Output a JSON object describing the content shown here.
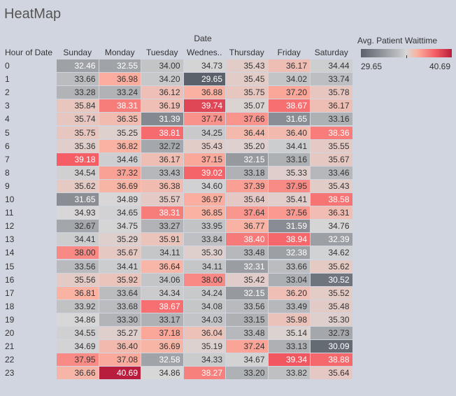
{
  "title": "HeatMap",
  "colors": {
    "background": "#d1d5e0"
  },
  "chart_data": {
    "type": "heatmap",
    "column_field": "Date",
    "row_field": "Hour of Date",
    "columns": [
      "Sunday",
      "Monday",
      "Tuesday",
      "Wednes..",
      "Thursday",
      "Friday",
      "Saturday"
    ],
    "rows": [
      "0",
      "1",
      "2",
      "3",
      "4",
      "5",
      "6",
      "7",
      "8",
      "9",
      "10",
      "11",
      "12",
      "13",
      "14",
      "15",
      "16",
      "17",
      "18",
      "19",
      "20",
      "21",
      "22",
      "23"
    ],
    "values": [
      [
        32.46,
        32.55,
        34.0,
        34.73,
        35.43,
        36.17,
        34.44
      ],
      [
        33.66,
        36.98,
        34.2,
        29.65,
        35.45,
        34.02,
        33.74
      ],
      [
        33.28,
        33.24,
        36.12,
        36.88,
        35.75,
        37.2,
        35.78
      ],
      [
        35.84,
        38.31,
        36.19,
        39.74,
        35.07,
        38.67,
        36.17
      ],
      [
        35.74,
        36.35,
        31.39,
        37.74,
        37.66,
        31.65,
        33.16
      ],
      [
        35.75,
        35.25,
        38.81,
        34.25,
        36.44,
        36.4,
        38.36
      ],
      [
        35.36,
        36.82,
        32.72,
        35.43,
        35.2,
        34.41,
        35.55
      ],
      [
        39.18,
        34.46,
        36.17,
        37.15,
        32.15,
        33.16,
        35.67
      ],
      [
        34.54,
        37.32,
        33.43,
        39.02,
        33.18,
        35.33,
        33.46
      ],
      [
        35.62,
        36.69,
        36.38,
        34.6,
        37.39,
        37.95,
        35.43
      ],
      [
        31.65,
        34.89,
        35.57,
        36.97,
        35.64,
        35.41,
        38.58
      ],
      [
        34.93,
        34.65,
        38.31,
        36.85,
        37.64,
        37.56,
        36.31
      ],
      [
        32.67,
        34.75,
        33.27,
        33.95,
        36.77,
        31.59,
        34.76
      ],
      [
        34.41,
        35.29,
        35.91,
        33.84,
        38.4,
        38.94,
        32.39
      ],
      [
        38.0,
        35.67,
        34.11,
        35.3,
        33.48,
        32.38,
        34.62
      ],
      [
        33.56,
        34.41,
        36.64,
        34.11,
        32.31,
        33.66,
        35.62
      ],
      [
        35.56,
        35.92,
        34.06,
        38.0,
        35.42,
        33.04,
        30.52
      ],
      [
        36.81,
        33.64,
        34.34,
        34.24,
        32.15,
        36.2,
        35.52
      ],
      [
        33.92,
        33.68,
        38.67,
        34.08,
        33.56,
        33.49,
        35.48
      ],
      [
        34.86,
        33.3,
        33.17,
        34.03,
        33.15,
        35.98,
        35.3
      ],
      [
        34.55,
        35.27,
        37.18,
        36.04,
        33.48,
        35.14,
        32.73
      ],
      [
        34.69,
        36.4,
        36.69,
        35.19,
        37.24,
        33.13,
        30.09
      ],
      [
        37.95,
        37.08,
        32.58,
        34.33,
        34.67,
        39.34,
        38.88
      ],
      [
        36.66,
        40.69,
        34.86,
        38.27,
        33.2,
        33.82,
        35.64
      ]
    ],
    "legend": {
      "title": "Avg. Patient Waittime",
      "min_label": "29.65",
      "max_label": "40.69",
      "min": 29.65,
      "max": 40.69,
      "center": 34.85,
      "placement": "top-right"
    },
    "color_scale": [
      "#5a616a",
      "#d7d7d8",
      "#b91d3e"
    ]
  }
}
